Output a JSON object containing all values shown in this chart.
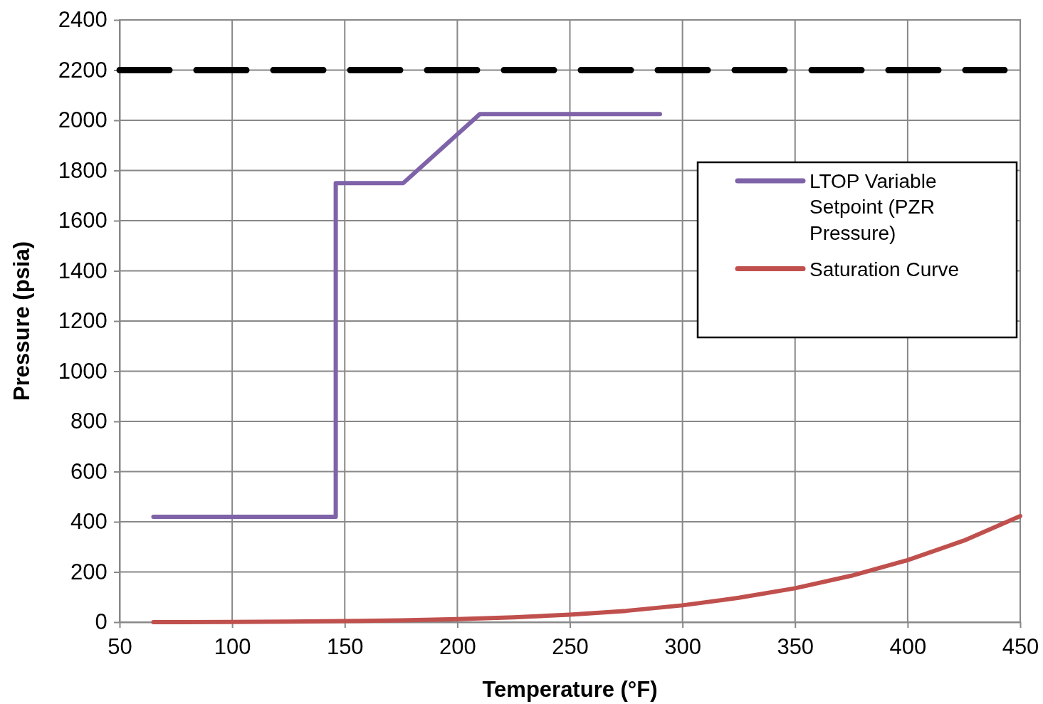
{
  "chart_data": {
    "type": "line",
    "xlabel": "Temperature (°F)",
    "ylabel": "Pressure (psia)",
    "xlim": [
      50,
      450
    ],
    "xticks": [
      50,
      100,
      150,
      200,
      250,
      300,
      350,
      400,
      450
    ],
    "ylim": [
      0,
      2400
    ],
    "yticks": [
      0,
      200,
      400,
      600,
      800,
      1000,
      1200,
      1400,
      1600,
      1800,
      2000,
      2200,
      2400
    ],
    "grid": true,
    "legend": "top right",
    "series": [
      {
        "name": "LTOP Variable Setpoint (PZR Pressure)",
        "color": "#7f63a8",
        "x": [
          65,
          146,
          146,
          176,
          210,
          290
        ],
        "values": [
          420,
          420,
          1750,
          1750,
          2025,
          2025
        ]
      },
      {
        "name": "Saturation Curve",
        "color": "#c0504d",
        "x": [
          65,
          75,
          100,
          125,
          150,
          175,
          200,
          225,
          250,
          275,
          300,
          325,
          350,
          375,
          400,
          425,
          450
        ],
        "values": [
          0,
          0,
          1,
          2,
          4,
          7,
          12,
          19,
          30,
          45,
          67,
          97,
          135,
          185,
          247,
          325,
          423
        ]
      },
      {
        "color": "#000000",
        "line_style": "dashed",
        "x": [
          50,
          443
        ],
        "values": [
          2200,
          2200
        ]
      }
    ]
  }
}
